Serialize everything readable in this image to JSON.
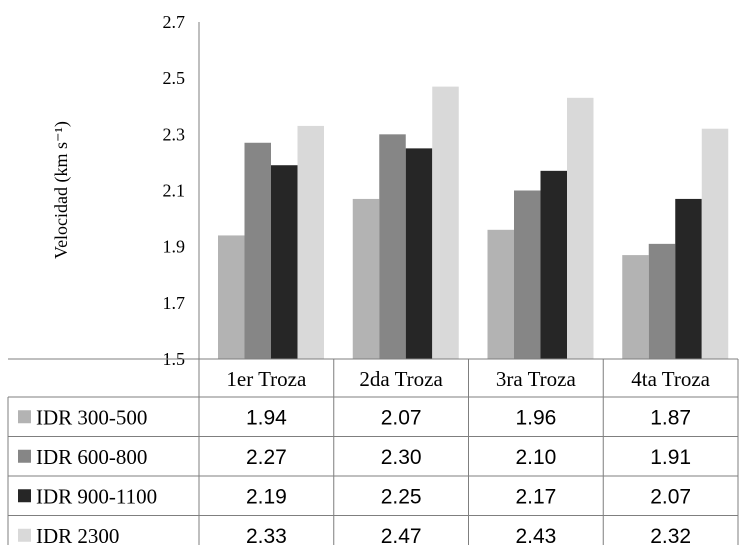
{
  "chart_data": {
    "type": "bar",
    "ylabel": "Velocidad (km s⁻¹)",
    "ylim": [
      1.5,
      2.7
    ],
    "yticks": [
      "1.5",
      "1.7",
      "1.9",
      "2.1",
      "2.3",
      "2.5",
      "2.7"
    ],
    "categories": [
      "1er Troza",
      "2da Troza",
      "3ra Troza",
      "4ta Troza"
    ],
    "series": [
      {
        "name": "IDR 300-500",
        "color": "#b3b3b3",
        "values": [
          1.94,
          2.07,
          1.96,
          1.87
        ],
        "labels": [
          "1.94",
          "2.07",
          "1.96",
          "1.87"
        ]
      },
      {
        "name": "IDR 600-800",
        "color": "#868686",
        "values": [
          2.27,
          2.3,
          2.1,
          1.91
        ],
        "labels": [
          "2.27",
          "2.30",
          "2.10",
          "1.91"
        ]
      },
      {
        "name": "IDR 900-1100",
        "color": "#262626",
        "values": [
          2.19,
          2.25,
          2.17,
          2.07
        ],
        "labels": [
          "2.19",
          "2.25",
          "2.17",
          "2.07"
        ]
      },
      {
        "name": "IDR 2300",
        "color": "#d9d9d9",
        "values": [
          2.33,
          2.47,
          2.43,
          2.32
        ],
        "labels": [
          "2.33",
          "2.47",
          "2.43",
          "2.32"
        ]
      }
    ],
    "grid": false,
    "legend": "data-table"
  }
}
